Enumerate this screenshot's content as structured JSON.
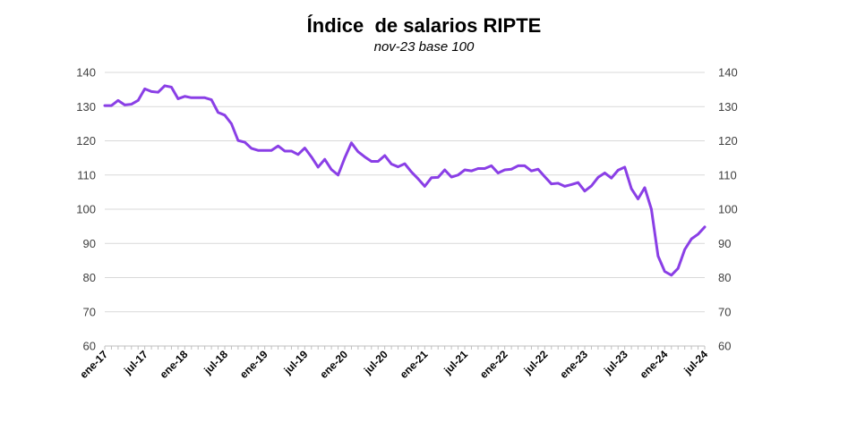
{
  "chart_data": {
    "type": "line",
    "title": "Índice  de salarios RIPTE",
    "subtitle": "nov-23 base 100",
    "xlabel": "",
    "ylabel": "",
    "ylim": [
      60,
      140
    ],
    "yticks": [
      60,
      70,
      80,
      90,
      100,
      110,
      120,
      130,
      140
    ],
    "xtick_labels": [
      "ene-17",
      "jul-17",
      "ene-18",
      "jul-18",
      "ene-19",
      "jul-19",
      "ene-20",
      "jul-20",
      "ene-21",
      "jul-21",
      "ene-22",
      "jul-22",
      "ene-23",
      "jul-23",
      "ene-24",
      "jul-24"
    ],
    "x_start": "ene-17",
    "x_end": "jul-24",
    "grid": "horizontal",
    "legend": "none",
    "color": "#8A3FE6",
    "series": [
      {
        "values": [
          130.3,
          130.3,
          131.8,
          130.5,
          130.7,
          131.8,
          135.2,
          134.4,
          134.2,
          136.1,
          135.7,
          132.3,
          133.0,
          132.6,
          132.6,
          132.6,
          132.0,
          128.3,
          127.5,
          125.0,
          120.1,
          119.6,
          117.8,
          117.2,
          117.2,
          117.2,
          118.5,
          117.0,
          117.0,
          116.0,
          117.9,
          115.3,
          112.3,
          114.6,
          111.6,
          110.0,
          115.0,
          119.4,
          116.8,
          115.3,
          114.0,
          114.0,
          115.7,
          113.2,
          112.4,
          113.3,
          110.9,
          108.9,
          106.7,
          109.2,
          109.3,
          111.5,
          109.4,
          110.0,
          111.5,
          111.2,
          111.9,
          111.9,
          112.7,
          110.6,
          111.5,
          111.7,
          112.7,
          112.7,
          111.2,
          111.7,
          109.5,
          107.4,
          107.6,
          106.7,
          107.2,
          107.8,
          105.3,
          106.8,
          109.3,
          110.6,
          109.1,
          111.4,
          112.3,
          106.0,
          103.0,
          106.3,
          100.0,
          86.3,
          81.8,
          80.7,
          82.7,
          88.2,
          91.3,
          92.7,
          94.8
        ]
      }
    ]
  }
}
